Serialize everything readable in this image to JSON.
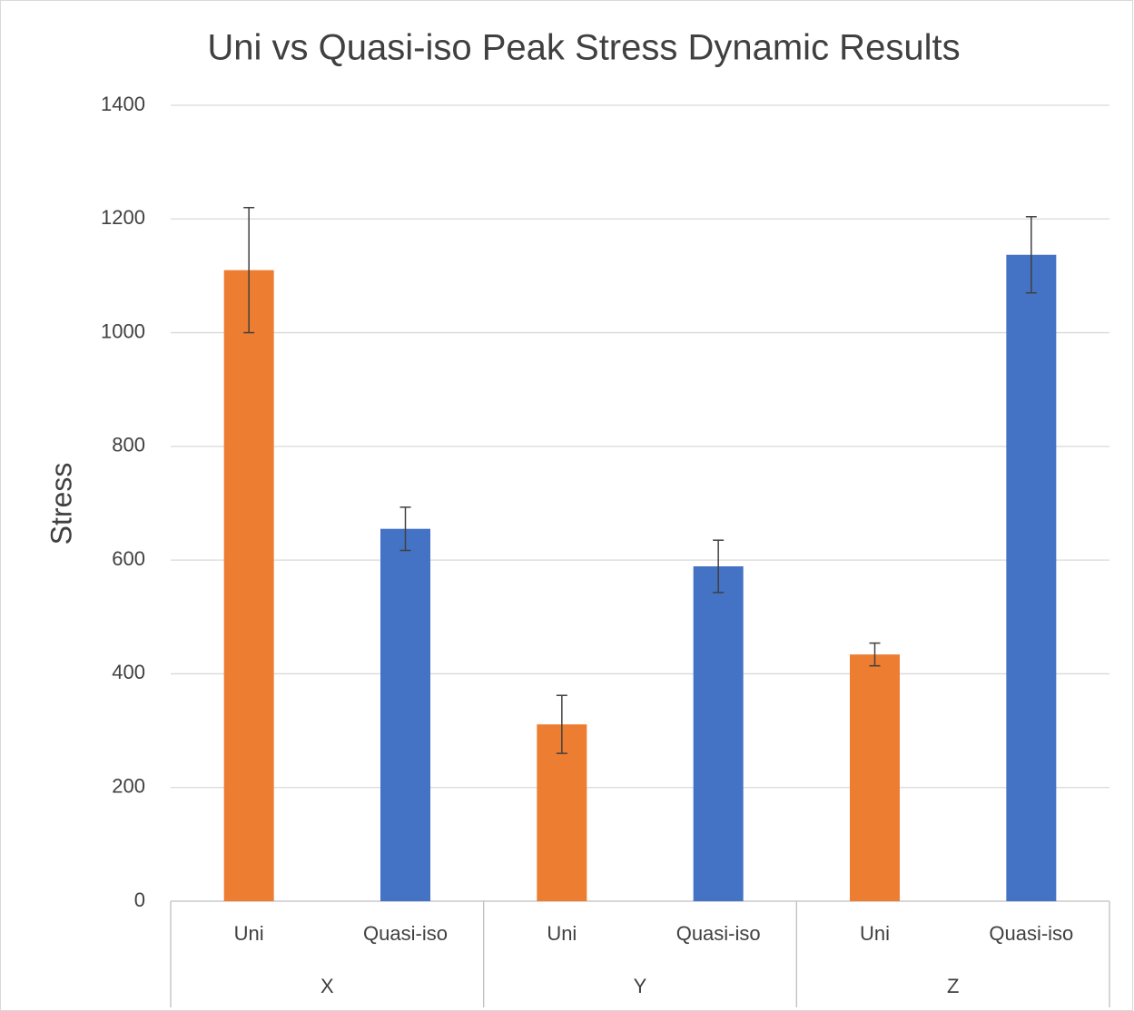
{
  "chart_data": {
    "type": "bar",
    "title": "Uni vs Quasi-iso Peak Stress Dynamic Results",
    "y_label": "Stress",
    "categories": [
      "Uni",
      "Quasi-iso",
      "Uni",
      "Quasi-iso",
      "Uni",
      "Quasi-iso"
    ],
    "groups": [
      "X",
      "Y",
      "Z"
    ],
    "values": [
      1110,
      655,
      311,
      589,
      434,
      1137
    ],
    "errors": [
      110,
      38,
      51,
      46,
      20,
      67
    ],
    "colors": [
      "#ed7d31",
      "#4472c4",
      "#ed7d31",
      "#4472c4",
      "#ed7d31",
      "#4472c4"
    ],
    "ylim": [
      0,
      1400
    ],
    "yticks": [
      0,
      200,
      400,
      600,
      800,
      1000,
      1200,
      1400
    ],
    "grid": true
  }
}
